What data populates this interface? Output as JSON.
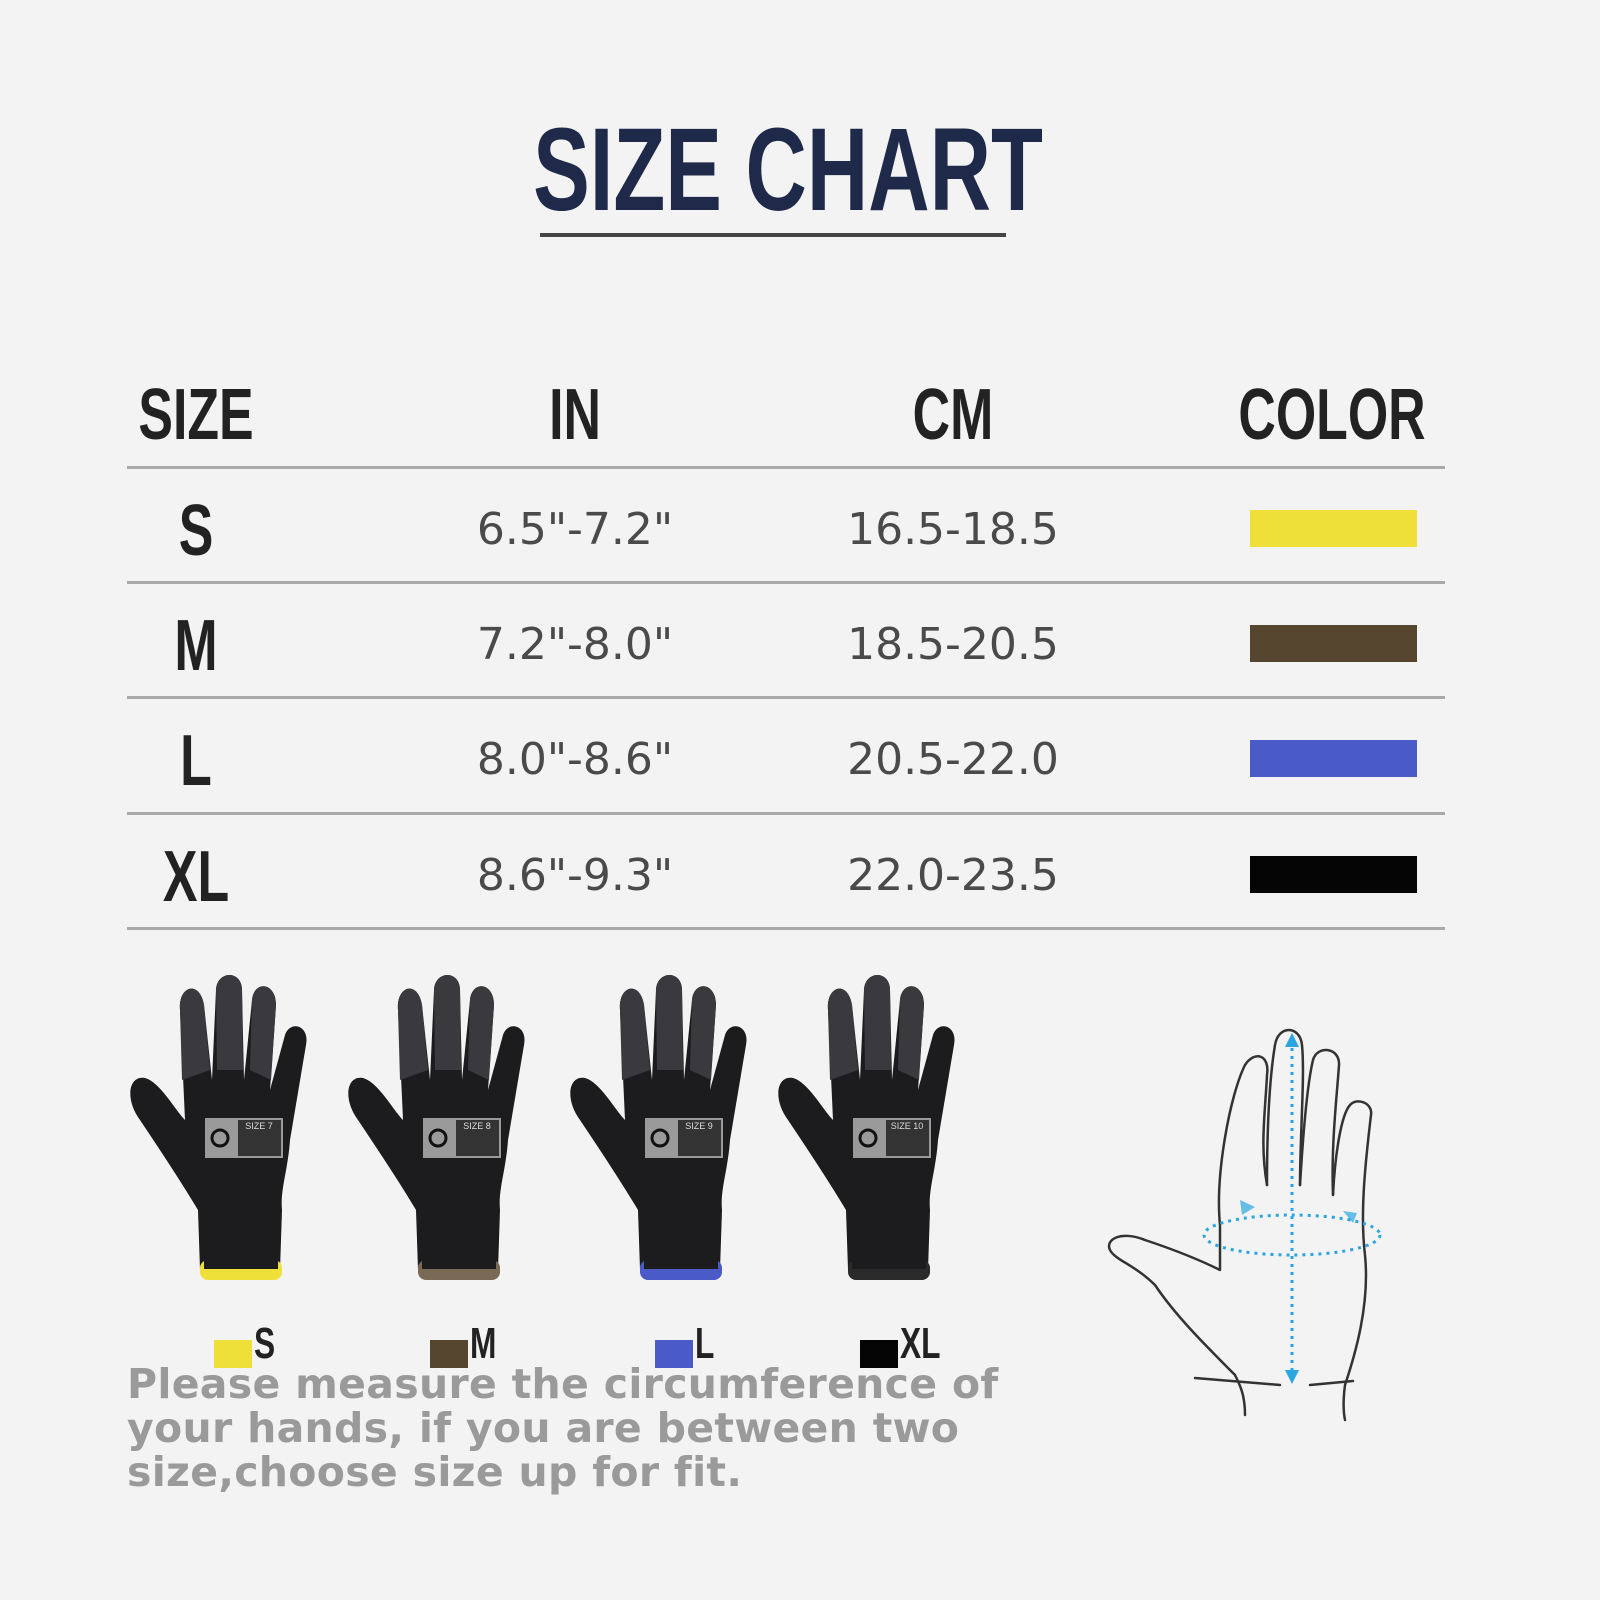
{
  "title": "SIZE CHART",
  "table": {
    "headers": [
      "SIZE",
      "IN",
      "CM",
      "COLOR"
    ],
    "rows": [
      {
        "size": "S",
        "in": "6.5\"-7.2\"",
        "cm": "16.5-18.5",
        "color": "#efe039"
      },
      {
        "size": "M",
        "in": "7.2\"-8.0\"",
        "cm": "18.5-20.5",
        "color": "#56452f"
      },
      {
        "size": "L",
        "in": "8.0\"-8.6\"",
        "cm": "20.5-22.0",
        "color": "#4a5bc8"
      },
      {
        "size": "XL",
        "in": "8.6\"-9.3\"",
        "cm": "22.0-23.5",
        "color": "#050505"
      }
    ]
  },
  "gloves": [
    {
      "tag": "SIZE 7",
      "legend": "S",
      "cuff_color": "#efe039"
    },
    {
      "tag": "SIZE 8",
      "legend": "M",
      "cuff_color": "#7a6a55"
    },
    {
      "tag": "SIZE 9",
      "legend": "L",
      "cuff_color": "#4a5bc8"
    },
    {
      "tag": "SIZE 10",
      "legend": "XL",
      "cuff_color": "#2a2a2a"
    }
  ],
  "note": "Please measure the circumference of your hands, if you are between two size,choose size up for fit.",
  "measure_color": "#2aa6e0"
}
